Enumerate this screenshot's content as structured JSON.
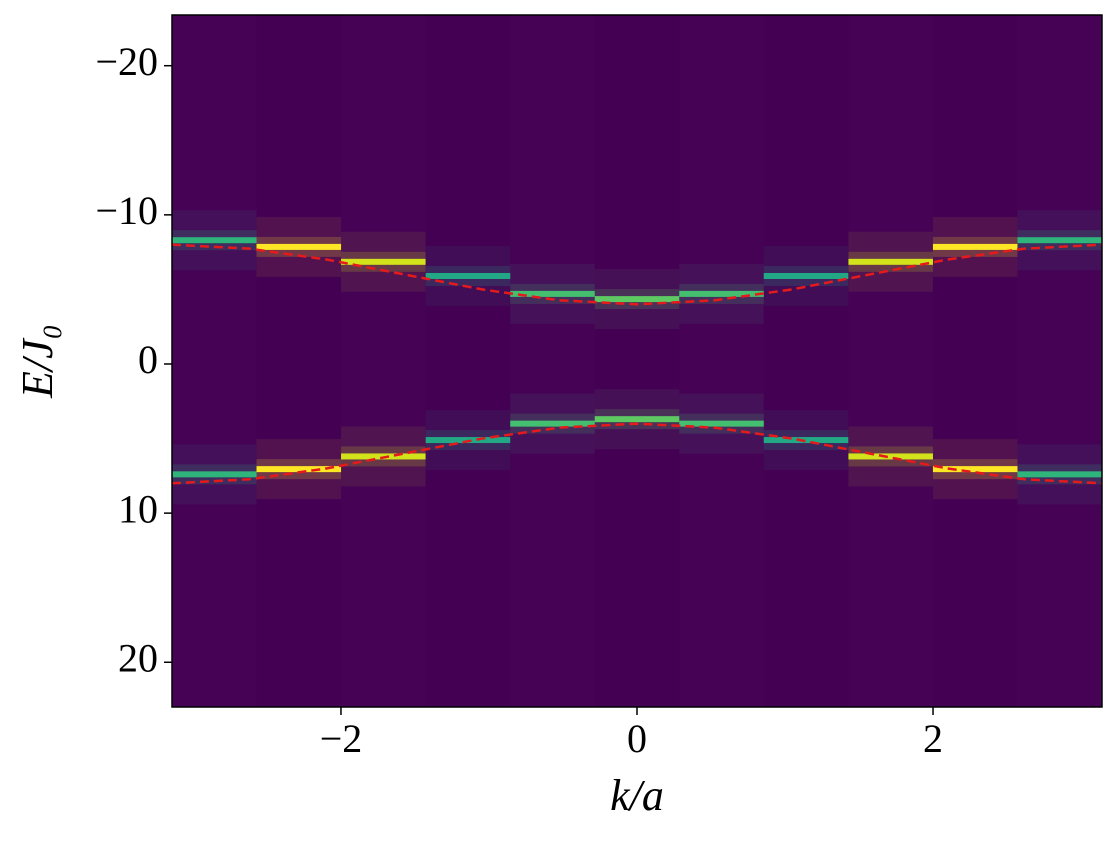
{
  "chart_data": {
    "type": "heatmap",
    "xlabel": "k/a",
    "ylabel": "E/J₀",
    "xlim": [
      -3.1416,
      3.1416
    ],
    "ylim": [
      -23.4,
      23
    ],
    "y_inverted": true,
    "xticks": [
      {
        "value": -2,
        "label": "−2"
      },
      0,
      2
    ],
    "yticks": [
      {
        "value": -20,
        "label": "−20"
      },
      {
        "value": -10,
        "label": "−10"
      },
      0,
      10,
      20
    ],
    "background": "#440154",
    "x": [
      -2.856,
      -2.285,
      -1.714,
      -1.142,
      -0.571,
      0,
      0.571,
      1.142,
      1.714,
      2.285,
      2.856
    ],
    "peaks": [
      {
        "values": [
          -8.3,
          -7.85,
          -6.85,
          -5.9,
          -4.7,
          -4.35,
          -4.7,
          -5.9,
          -6.85,
          -7.85,
          -8.3
        ]
      },
      {
        "values": [
          7.4,
          7.05,
          6.2,
          5.1,
          4.0,
          3.7,
          4.0,
          5.1,
          6.2,
          7.05,
          7.4
        ]
      }
    ],
    "peak_colors": [
      "#2fb47c",
      "#fde725",
      "#d2e21b",
      "#22a884",
      "#44bf70",
      "#5ec962",
      "#44bf70",
      "#22a884",
      "#d2e21b",
      "#fde725",
      "#2fb47c"
    ],
    "curve": {
      "dash": true,
      "x": [
        -3.1416,
        -2.618,
        -2.0944,
        -1.5708,
        -1.0472,
        -0.5236,
        0,
        0.5236,
        1.0472,
        1.5708,
        2.0944,
        2.618,
        3.1416
      ],
      "series": [
        {
          "color": "#e41a1c",
          "values": [
            -8,
            -7.732,
            -7,
            -6,
            -5,
            -4.268,
            -4,
            -4.268,
            -5,
            -6,
            -7,
            -7.732,
            -8
          ]
        },
        {
          "color": "#e41a1c",
          "values": [
            8,
            7.732,
            7,
            6,
            5,
            4.268,
            4,
            4.268,
            5,
            6,
            7,
            7.732,
            8
          ]
        }
      ]
    }
  }
}
